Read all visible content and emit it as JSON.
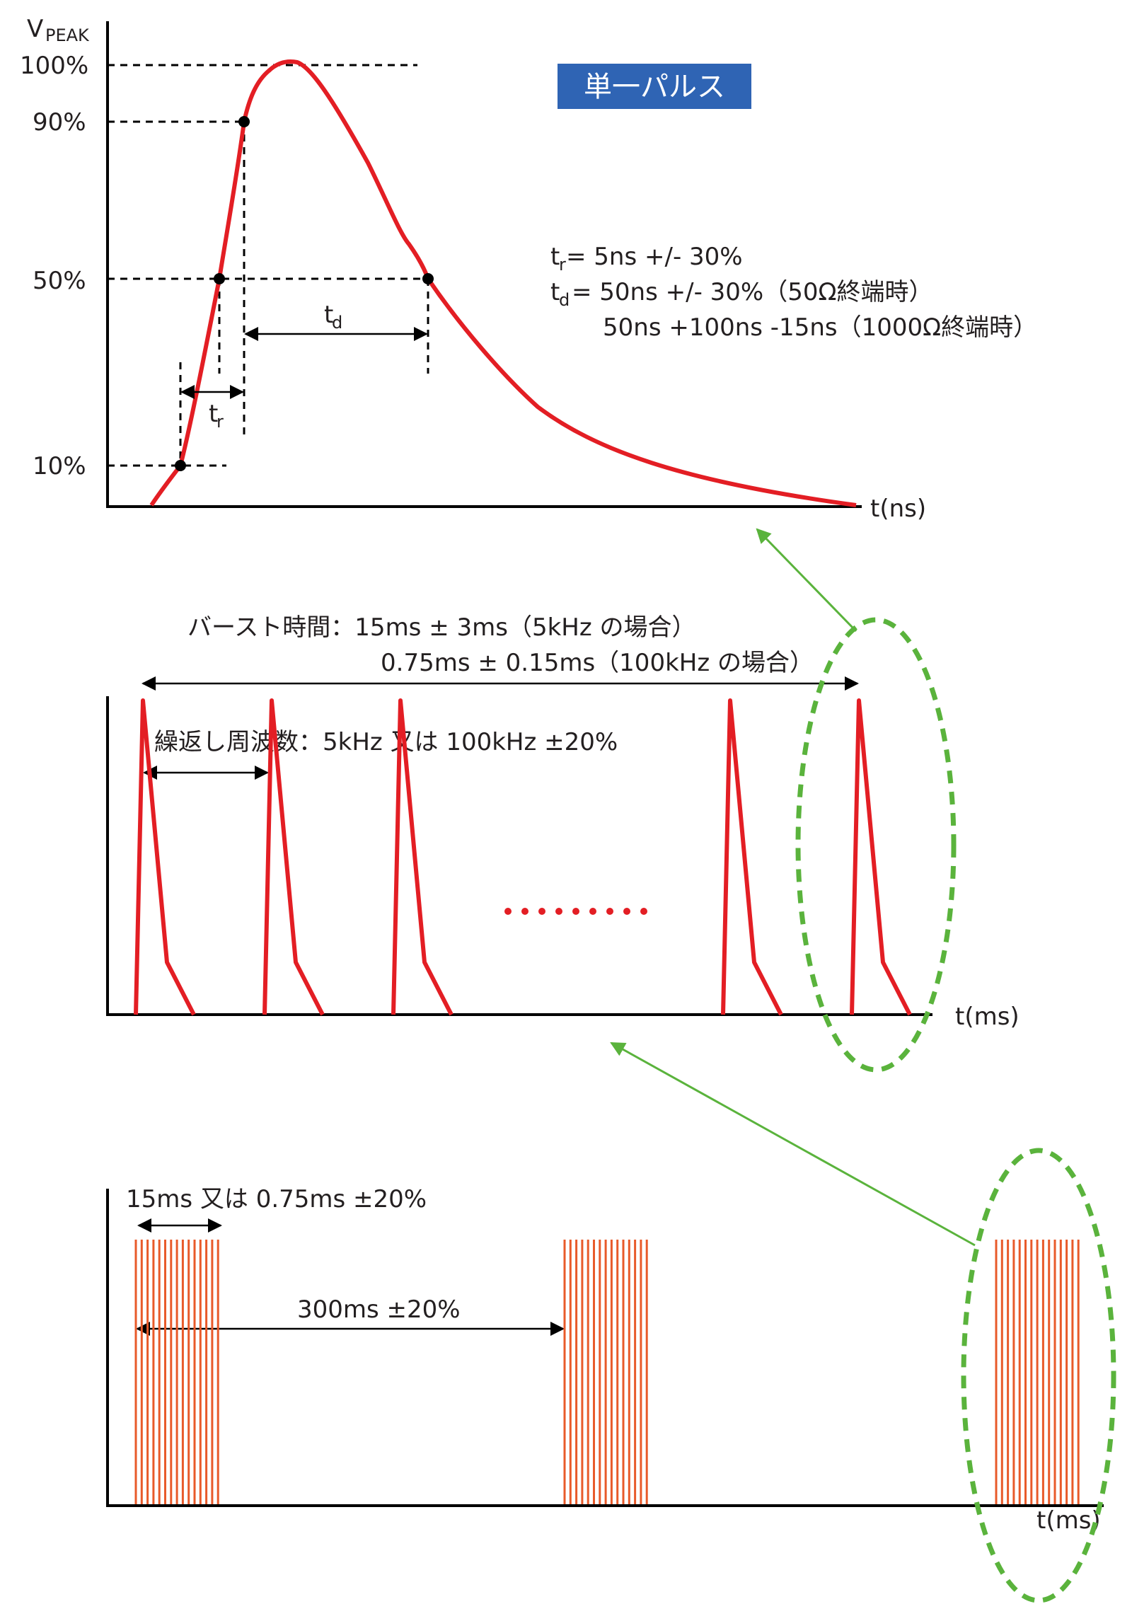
{
  "top": {
    "y_axis_label": "V",
    "y_axis_sub": "PEAK",
    "y_ticks": [
      "100%",
      "90%",
      "50%",
      "10%"
    ],
    "x_axis_label": "t(ns)",
    "title": "単一パルス",
    "tr_label": "t",
    "tr_sub": "r",
    "td_label": "t",
    "td_sub": "d",
    "spec_line1_prefix": "t",
    "spec_line1_sub": "r",
    "spec_line1": " = 5ns +/- 30%",
    "spec_line2_prefix": "t",
    "spec_line2_sub": "d",
    "spec_line2": " = 50ns +/- 30%（50Ω終端時）",
    "spec_line3": "50ns +100ns -15ns（1000Ω終端時）"
  },
  "middle": {
    "burst_line1": "バースト時間：15ms ± 3ms（5kHz の場合）",
    "burst_line2": "0.75ms ± 0.15ms（100kHz の場合）",
    "repeat_label": "繰返し周波数：5kHz 又は 100kHz ±20%",
    "x_axis_label": "t(ms)"
  },
  "bottom": {
    "burst_width_label": "15ms 又は 0.75ms ±20%",
    "period_label": "300ms ±20%",
    "x_axis_label": "t(ms)"
  },
  "colors": {
    "wave": "#e31e24",
    "bars": "#e85a2a",
    "highlight": "#5ab33c",
    "title_bg": "#2f64b4"
  }
}
